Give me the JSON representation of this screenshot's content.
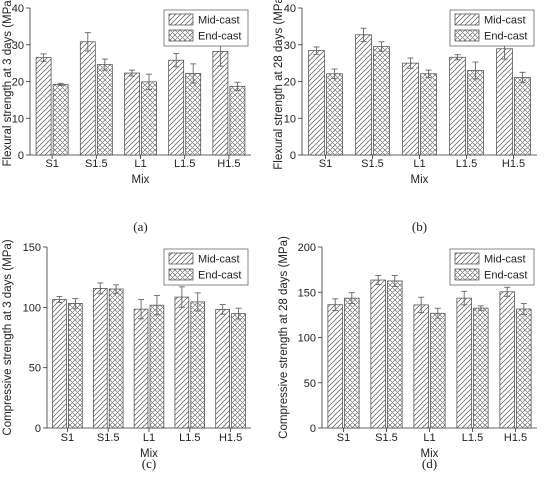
{
  "chart_data": [
    {
      "type": "bar",
      "panel_label": "(a)",
      "ylabel": "Flexural strength at 3 days (MPa)",
      "xlabel": "Mix",
      "categories": [
        "S1",
        "S1.5",
        "L1",
        "L1.5",
        "H1.5"
      ],
      "ylim": [
        0,
        40
      ],
      "yticks": [
        0,
        10,
        20,
        30,
        40
      ],
      "legend": "top-right",
      "series": [
        {
          "name": "Mid-cast",
          "pattern": "diag",
          "values": [
            26.5,
            30.8,
            22.3,
            25.8,
            28.2
          ],
          "errors": [
            1.0,
            2.5,
            0.8,
            1.8,
            4.0
          ]
        },
        {
          "name": "End-cast",
          "pattern": "cross",
          "values": [
            19.2,
            24.6,
            19.9,
            22.2,
            18.7
          ],
          "errors": [
            0.3,
            1.5,
            2.1,
            2.6,
            1.1
          ]
        }
      ]
    },
    {
      "type": "bar",
      "panel_label": "(b)",
      "ylabel": "Flexural strength at 28 days (MPa)",
      "xlabel": "Mix",
      "categories": [
        "S1",
        "S1.5",
        "L1",
        "L1.5",
        "H1.5"
      ],
      "ylim": [
        0,
        40
      ],
      "yticks": [
        0,
        10,
        20,
        30,
        40
      ],
      "legend": "top-right",
      "series": [
        {
          "name": "Mid-cast",
          "pattern": "diag",
          "values": [
            28.4,
            32.7,
            25.0,
            26.6,
            28.9
          ],
          "errors": [
            1.0,
            1.8,
            1.4,
            0.7,
            2.8
          ]
        },
        {
          "name": "End-cast",
          "pattern": "cross",
          "values": [
            22.1,
            29.5,
            22.1,
            23.0,
            21.1
          ],
          "errors": [
            1.3,
            1.3,
            1.0,
            2.3,
            1.4
          ]
        }
      ]
    },
    {
      "type": "bar",
      "panel_label": "(c)",
      "ylabel": "Compressive strength at 3 days (MPa)",
      "xlabel": "Mix",
      "categories": [
        "S1",
        "S1.5",
        "L1",
        "L1.5",
        "H1.5"
      ],
      "ylim": [
        0,
        150
      ],
      "yticks": [
        0,
        50,
        100,
        150
      ],
      "legend": "top-right",
      "series": [
        {
          "name": "Mid-cast",
          "pattern": "diag",
          "values": [
            106.5,
            115.7,
            98.5,
            108.5,
            98.3
          ],
          "errors": [
            2.5,
            4.5,
            8.0,
            8.5,
            4.0
          ]
        },
        {
          "name": "End-cast",
          "pattern": "cross",
          "values": [
            103.3,
            115.2,
            101.8,
            104.5,
            94.8
          ],
          "errors": [
            4.0,
            3.5,
            8.0,
            7.5,
            4.5
          ]
        }
      ]
    },
    {
      "type": "bar",
      "panel_label": "(d)",
      "ylabel": "Compressive strength at 28 days (MPa)",
      "xlabel": "Mix",
      "categories": [
        "S1",
        "S1.5",
        "L1",
        "L1.5",
        "H1.5"
      ],
      "ylim": [
        0,
        200
      ],
      "yticks": [
        0,
        50,
        100,
        150,
        200
      ],
      "legend": "top-right",
      "series": [
        {
          "name": "Mid-cast",
          "pattern": "diag",
          "values": [
            136.2,
            163.5,
            136.0,
            143.5,
            150.5
          ],
          "errors": [
            6.5,
            5.0,
            8.5,
            7.5,
            5.0
          ]
        },
        {
          "name": "End-cast",
          "pattern": "cross",
          "values": [
            143.5,
            162.5,
            126.8,
            132.5,
            131.5
          ],
          "errors": [
            6.0,
            6.0,
            5.5,
            2.5,
            6.0
          ]
        }
      ]
    }
  ]
}
